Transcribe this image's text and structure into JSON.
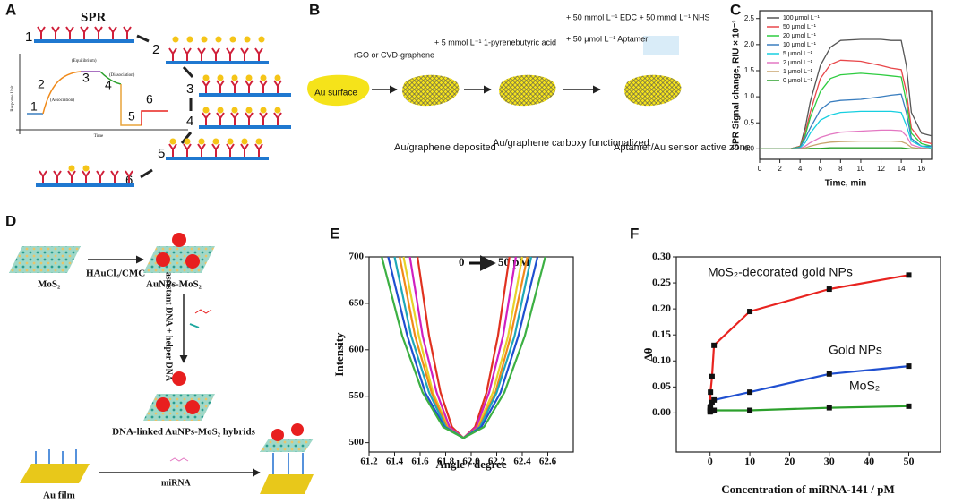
{
  "panel_labels": [
    "A",
    "B",
    "C",
    "D",
    "E",
    "F"
  ],
  "panel_a": {
    "title": "SPR",
    "steps": [
      "1",
      "2",
      "3",
      "4",
      "5",
      "6"
    ],
    "curve_labels": [
      "1",
      "2",
      "3",
      "4",
      "5",
      "6"
    ],
    "phases": [
      "(Equilibrium)",
      "(Association)",
      "(Dissociation)"
    ],
    "y_axis": "Response Unit",
    "x_axis": "Time"
  },
  "panel_b": {
    "surface": "Au surface",
    "step1": "rGO or CVD-graphene",
    "stage1": "Au/graphene deposited",
    "step2": "+ 5 mmol L⁻¹ 1-pyrenebutyric acid",
    "stage2": "Au/graphene carboxy functionalized",
    "step3": "+ 50 mmol L⁻¹ EDC + 50 mmol L⁻¹ NHS",
    "step3b": "+ 50 μmol L⁻¹ Aptamer",
    "stage3": "Aptamer/Au sensor active zone"
  },
  "panel_d": {
    "mos2": "MoS₂",
    "reagent": "HAuCl₄/CMC",
    "product": "AuNPs-MoS₂",
    "dna": "assistant DNA + helper DNA",
    "hybrid": "DNA-linked AuNPs-MoS₂ hybrids",
    "film": "Au film",
    "target": "miRNA"
  },
  "chart_data": [
    {
      "type": "line",
      "x_label": "Time, min",
      "y_label": "SPR Signal change, RIU × 10⁻³",
      "xlim": [
        0,
        17
      ],
      "xticks": [
        0,
        2,
        4,
        6,
        8,
        10,
        12,
        14,
        16
      ],
      "ylim": [
        -0.2,
        2.65
      ],
      "yticks": [
        {
          "value": 0,
          "label": "0.0"
        },
        {
          "value": 0.5,
          "label": "0.5"
        },
        {
          "value": 1,
          "label": "1.0"
        },
        {
          "value": 1.5,
          "label": "1.5"
        },
        {
          "value": 2,
          "label": "2.0"
        },
        {
          "value": 2.5,
          "label": "2.5"
        }
      ],
      "legend": "upper left",
      "x": [
        0,
        3,
        4,
        4.5,
        5,
        6,
        7,
        8,
        10,
        12,
        13,
        14,
        14.5,
        15,
        16,
        17
      ],
      "series": [
        {
          "name": "100 μmol L⁻¹",
          "color": "#555555",
          "values": [
            0,
            0,
            0.05,
            0.4,
            0.9,
            1.6,
            1.95,
            2.08,
            2.1,
            2.1,
            2.08,
            2.08,
            1.6,
            0.7,
            0.3,
            0.25
          ]
        },
        {
          "name": "50 μmol L⁻¹",
          "color": "#e8474a",
          "values": [
            0,
            0,
            0.05,
            0.3,
            0.7,
            1.35,
            1.62,
            1.7,
            1.68,
            1.6,
            1.55,
            1.52,
            1.1,
            0.4,
            0.15,
            0.1
          ]
        },
        {
          "name": "20 μmol L⁻¹",
          "color": "#2ecc40",
          "values": [
            0,
            0,
            0.04,
            0.25,
            0.6,
            1.1,
            1.35,
            1.42,
            1.45,
            1.42,
            1.4,
            1.38,
            0.9,
            0.3,
            0.1,
            0.05
          ]
        },
        {
          "name": "10 μmol L⁻¹",
          "color": "#3a7ebf",
          "values": [
            0,
            0,
            0.03,
            0.2,
            0.4,
            0.75,
            0.9,
            0.93,
            0.95,
            1.0,
            1.03,
            1.05,
            0.7,
            0.2,
            0.05,
            0.05
          ]
        },
        {
          "name": "5 μmol L⁻¹",
          "color": "#17cfe0",
          "values": [
            0,
            0,
            0.02,
            0.12,
            0.3,
            0.55,
            0.65,
            0.7,
            0.72,
            0.72,
            0.72,
            0.7,
            0.45,
            0.15,
            0.05,
            0.02
          ]
        },
        {
          "name": "2 μmol L⁻¹",
          "color": "#e377c2",
          "values": [
            0,
            0,
            0.01,
            0.05,
            0.12,
            0.22,
            0.28,
            0.32,
            0.34,
            0.36,
            0.36,
            0.35,
            0.25,
            0.08,
            0.02,
            0
          ]
        },
        {
          "name": "1 μmol L⁻¹",
          "color": "#c8a46e",
          "values": [
            0,
            0,
            0,
            0.02,
            0.05,
            0.1,
            0.13,
            0.14,
            0.15,
            0.15,
            0.15,
            0.14,
            0.1,
            0.03,
            0,
            0
          ]
        },
        {
          "name": "0 μmol L⁻¹",
          "color": "#2ca02c",
          "values": [
            0,
            0,
            0,
            0,
            0.01,
            0.01,
            0.02,
            0.02,
            0.02,
            0.02,
            0.02,
            0.02,
            0.01,
            0,
            0,
            0
          ]
        }
      ]
    },
    {
      "type": "line",
      "x_label": "Angle / degree",
      "y_label": "Intensity",
      "annotations": [
        "0",
        "50 pM"
      ],
      "xlim": [
        61.2,
        62.8
      ],
      "xticks": [
        61.2,
        61.4,
        61.6,
        61.8,
        {
          "value": 62,
          "label": "62.0"
        },
        62.2,
        62.4,
        62.6
      ],
      "ylim": [
        490,
        700
      ],
      "yticks": [
        500,
        550,
        600,
        650,
        700
      ],
      "series": [
        {
          "color": "#e8d22a",
          "x": [
            61.47,
            61.59,
            61.7,
            61.82,
            61.94,
            62.05,
            62.17,
            62.29,
            62.4
          ],
          "values": [
            700,
            615,
            554,
            517,
            505,
            517,
            554,
            615,
            700
          ]
        },
        {
          "color": "#e0311f",
          "x": [
            61.58,
            61.67,
            61.76,
            61.85,
            61.94,
            62.03,
            62.12,
            62.21,
            62.3
          ],
          "values": [
            700,
            615,
            554,
            517,
            505,
            517,
            554,
            615,
            700
          ]
        },
        {
          "color": "#d01fc0",
          "x": [
            61.52,
            61.62,
            61.73,
            61.83,
            61.94,
            62.04,
            62.14,
            62.25,
            62.35
          ],
          "values": [
            700,
            615,
            554,
            517,
            505,
            517,
            554,
            615,
            700
          ]
        },
        {
          "color": "#f08a1a",
          "x": [
            61.44,
            61.56,
            61.69,
            61.81,
            61.94,
            62.06,
            62.19,
            62.31,
            62.44
          ],
          "values": [
            700,
            615,
            554,
            517,
            505,
            517,
            554,
            615,
            700
          ]
        },
        {
          "color": "#1fa8b8",
          "x": [
            61.4,
            61.53,
            61.67,
            61.8,
            61.94,
            62.07,
            62.2,
            62.34,
            62.47
          ],
          "values": [
            700,
            615,
            554,
            517,
            505,
            517,
            554,
            615,
            700
          ]
        },
        {
          "color": "#1f4fd0",
          "x": [
            61.35,
            61.5,
            61.64,
            61.79,
            61.94,
            62.08,
            62.23,
            62.37,
            62.52
          ],
          "values": [
            700,
            615,
            554,
            517,
            505,
            517,
            554,
            615,
            700
          ]
        },
        {
          "color": "#3cb043",
          "x": [
            61.3,
            61.46,
            61.62,
            61.78,
            61.94,
            62.1,
            62.26,
            62.42,
            62.58
          ],
          "values": [
            700,
            615,
            554,
            517,
            505,
            517,
            554,
            615,
            700
          ]
        }
      ]
    },
    {
      "type": "line",
      "markers": true,
      "x_label": "Concentration of miRNA-141 / pM",
      "y_label": "Δθ",
      "xlim": [
        -8.5,
        58
      ],
      "xticks": [
        0,
        10,
        20,
        30,
        40,
        50
      ],
      "ylim": [
        -0.075,
        0.3
      ],
      "yticks": [
        {
          "value": 0,
          "label": "0.00"
        },
        {
          "value": 0.05,
          "label": "0.05"
        },
        {
          "value": 0.1,
          "label": "0.10"
        },
        {
          "value": 0.15,
          "label": "0.15"
        },
        {
          "value": 0.2,
          "label": "0.20"
        },
        {
          "value": 0.25,
          "label": "0.25"
        },
        {
          "value": 0.3,
          "label": "0.30"
        }
      ],
      "x": [
        0,
        0.1,
        0.5,
        1,
        10,
        30,
        50
      ],
      "series": [
        {
          "name": "MoS₂-decorated gold NPs",
          "color": "#e8231f",
          "values": [
            0.01,
            0.04,
            0.07,
            0.13,
            0.195,
            0.238,
            0.265
          ]
        },
        {
          "name": "Gold NPs",
          "color": "#1f4fd0",
          "values": [
            0.005,
            0.012,
            0.02,
            0.025,
            0.04,
            0.075,
            0.09
          ]
        },
        {
          "name": "MoS₂",
          "color": "#2ca02c",
          "values": [
            0.002,
            0.003,
            0.004,
            0.005,
            0.005,
            0.01,
            0.013
          ]
        }
      ]
    }
  ]
}
